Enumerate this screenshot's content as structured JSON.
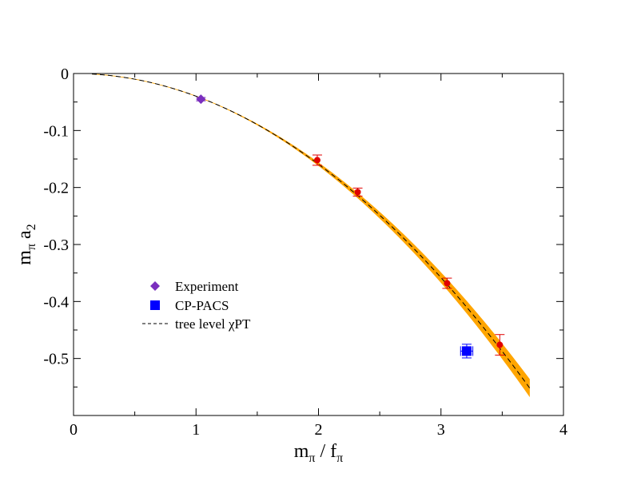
{
  "chart_data": {
    "type": "scatter",
    "xlim": [
      0,
      4
    ],
    "ylim": [
      -0.6,
      0
    ],
    "x_ticks": [
      0,
      1,
      2,
      3,
      4
    ],
    "y_ticks": [
      0,
      -0.1,
      -0.2,
      -0.3,
      -0.4,
      -0.5
    ],
    "x_tick_labels": [
      "0",
      "1",
      "2",
      "3",
      "4"
    ],
    "y_tick_labels": [
      "0",
      "-0.1",
      "-0.2",
      "-0.3",
      "-0.4",
      "-0.5"
    ],
    "xlabel": {
      "main": "m",
      "sub": "π",
      "mid": " / f",
      "sub2": "π"
    },
    "ylabel": {
      "main": "m",
      "sub": "π",
      "rest": " a",
      "sub2": "2"
    },
    "grid": false,
    "legend_placement": "lower-left",
    "series": [
      {
        "name": "Experiment",
        "marker": "diamond",
        "color": "#7b2fbe",
        "points": [
          {
            "x": 1.04,
            "y": -0.045,
            "yerr": 0.003
          }
        ]
      },
      {
        "name": "CP-PACS",
        "marker": "square",
        "color": "#0000ff",
        "points": [
          {
            "x": 3.21,
            "y": -0.487,
            "yerr": 0.012,
            "xerr": 0.05
          }
        ]
      },
      {
        "name": "",
        "marker": "circle",
        "color": "#e00000",
        "points": [
          {
            "x": 1.99,
            "y": -0.152,
            "yerr": 0.009
          },
          {
            "x": 2.32,
            "y": -0.208,
            "yerr": 0.007
          },
          {
            "x": 3.05,
            "y": -0.368,
            "yerr": 0.009
          },
          {
            "x": 3.48,
            "y": -0.476,
            "yerr": 0.018
          }
        ]
      },
      {
        "name": "tree level χPT",
        "type": "line",
        "style": "dashed",
        "color": "#000000",
        "formula": "y = -(x^2)/(8*pi)"
      },
      {
        "name": "",
        "type": "band",
        "color": "#ffa500",
        "description_note": ""
      }
    ]
  }
}
